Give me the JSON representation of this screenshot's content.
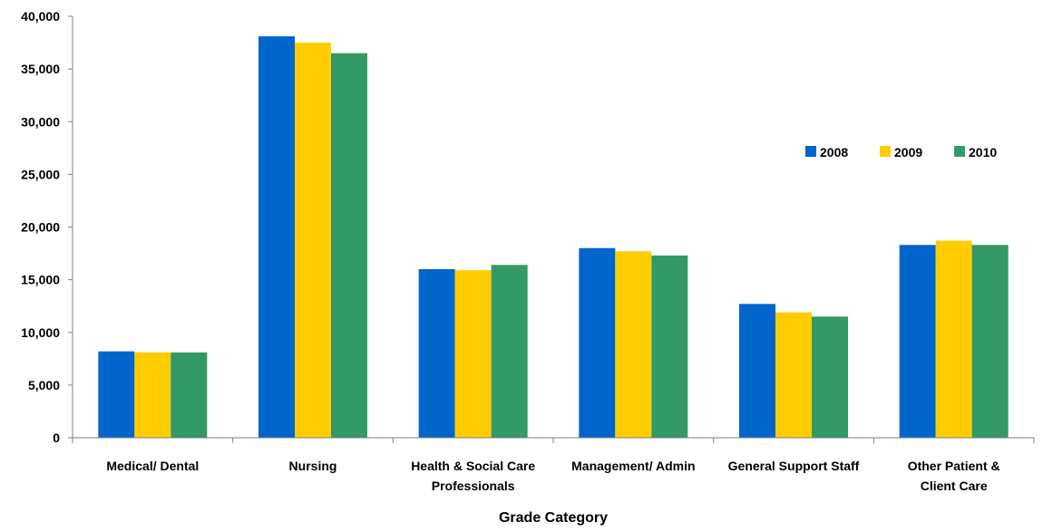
{
  "chart_data": {
    "type": "bar",
    "title": "",
    "xlabel": "Grade Category",
    "ylabel": "",
    "ylim": [
      0,
      40000
    ],
    "yticks": [
      0,
      5000,
      10000,
      15000,
      20000,
      25000,
      30000,
      35000,
      40000
    ],
    "ytick_labels": [
      "0",
      "5,000",
      "10,000",
      "15,000",
      "20,000",
      "25,000",
      "30,000",
      "35,000",
      "40,000"
    ],
    "categories": [
      [
        "Medical/ Dental"
      ],
      [
        "Nursing"
      ],
      [
        "Health & Social Care",
        "Professionals"
      ],
      [
        "Management/ Admin"
      ],
      [
        "General Support Staff"
      ],
      [
        "Other Patient &",
        "Client Care"
      ]
    ],
    "series": [
      {
        "name": "2008",
        "color": "#0066CC",
        "values": [
          8200,
          38100,
          16000,
          18000,
          12700,
          18300
        ]
      },
      {
        "name": "2009",
        "color": "#FFCC00",
        "values": [
          8100,
          37500,
          15900,
          17700,
          11900,
          18700
        ]
      },
      {
        "name": "2010",
        "color": "#339966",
        "values": [
          8100,
          36500,
          16400,
          17300,
          11500,
          18300
        ]
      }
    ],
    "grid": false,
    "legend_position": "right"
  }
}
